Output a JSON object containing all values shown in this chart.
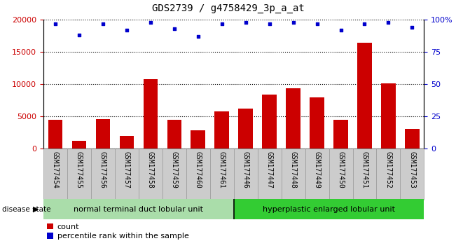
{
  "title": "GDS2739 / g4758429_3p_a_at",
  "categories": [
    "GSM177454",
    "GSM177455",
    "GSM177456",
    "GSM177457",
    "GSM177458",
    "GSM177459",
    "GSM177460",
    "GSM177461",
    "GSM177446",
    "GSM177447",
    "GSM177448",
    "GSM177449",
    "GSM177450",
    "GSM177451",
    "GSM177452",
    "GSM177453"
  ],
  "bar_values": [
    4500,
    1200,
    4600,
    2000,
    10800,
    4500,
    2900,
    5800,
    6200,
    8400,
    9400,
    8000,
    4500,
    16500,
    10200,
    3100
  ],
  "percentile_values": [
    97,
    88,
    97,
    92,
    98,
    93,
    87,
    97,
    98,
    97,
    98,
    97,
    92,
    97,
    98,
    94
  ],
  "group1_label": "normal terminal duct lobular unit",
  "group2_label": "hyperplastic enlarged lobular unit",
  "group1_count": 8,
  "group2_count": 8,
  "bar_color": "#cc0000",
  "dot_color": "#0000cc",
  "group1_bg": "#aaddaa",
  "group2_bg": "#33cc33",
  "disease_state_label": "disease state",
  "left_axis_color": "#cc0000",
  "right_axis_color": "#0000cc",
  "ylim_left": [
    0,
    20000
  ],
  "ylim_right": [
    0,
    100
  ],
  "yticks_left": [
    0,
    5000,
    10000,
    15000,
    20000
  ],
  "yticks_right": [
    0,
    25,
    50,
    75,
    100
  ],
  "legend_count_label": "count",
  "legend_percentile_label": "percentile rank within the sample",
  "background_color": "#ffffff",
  "plot_bg_color": "#ffffff",
  "grid_color": "#000000",
  "title_fontsize": 10,
  "tick_label_fontsize": 7,
  "xlabel_bg_color": "#cccccc",
  "xlabel_border_color": "#999999"
}
